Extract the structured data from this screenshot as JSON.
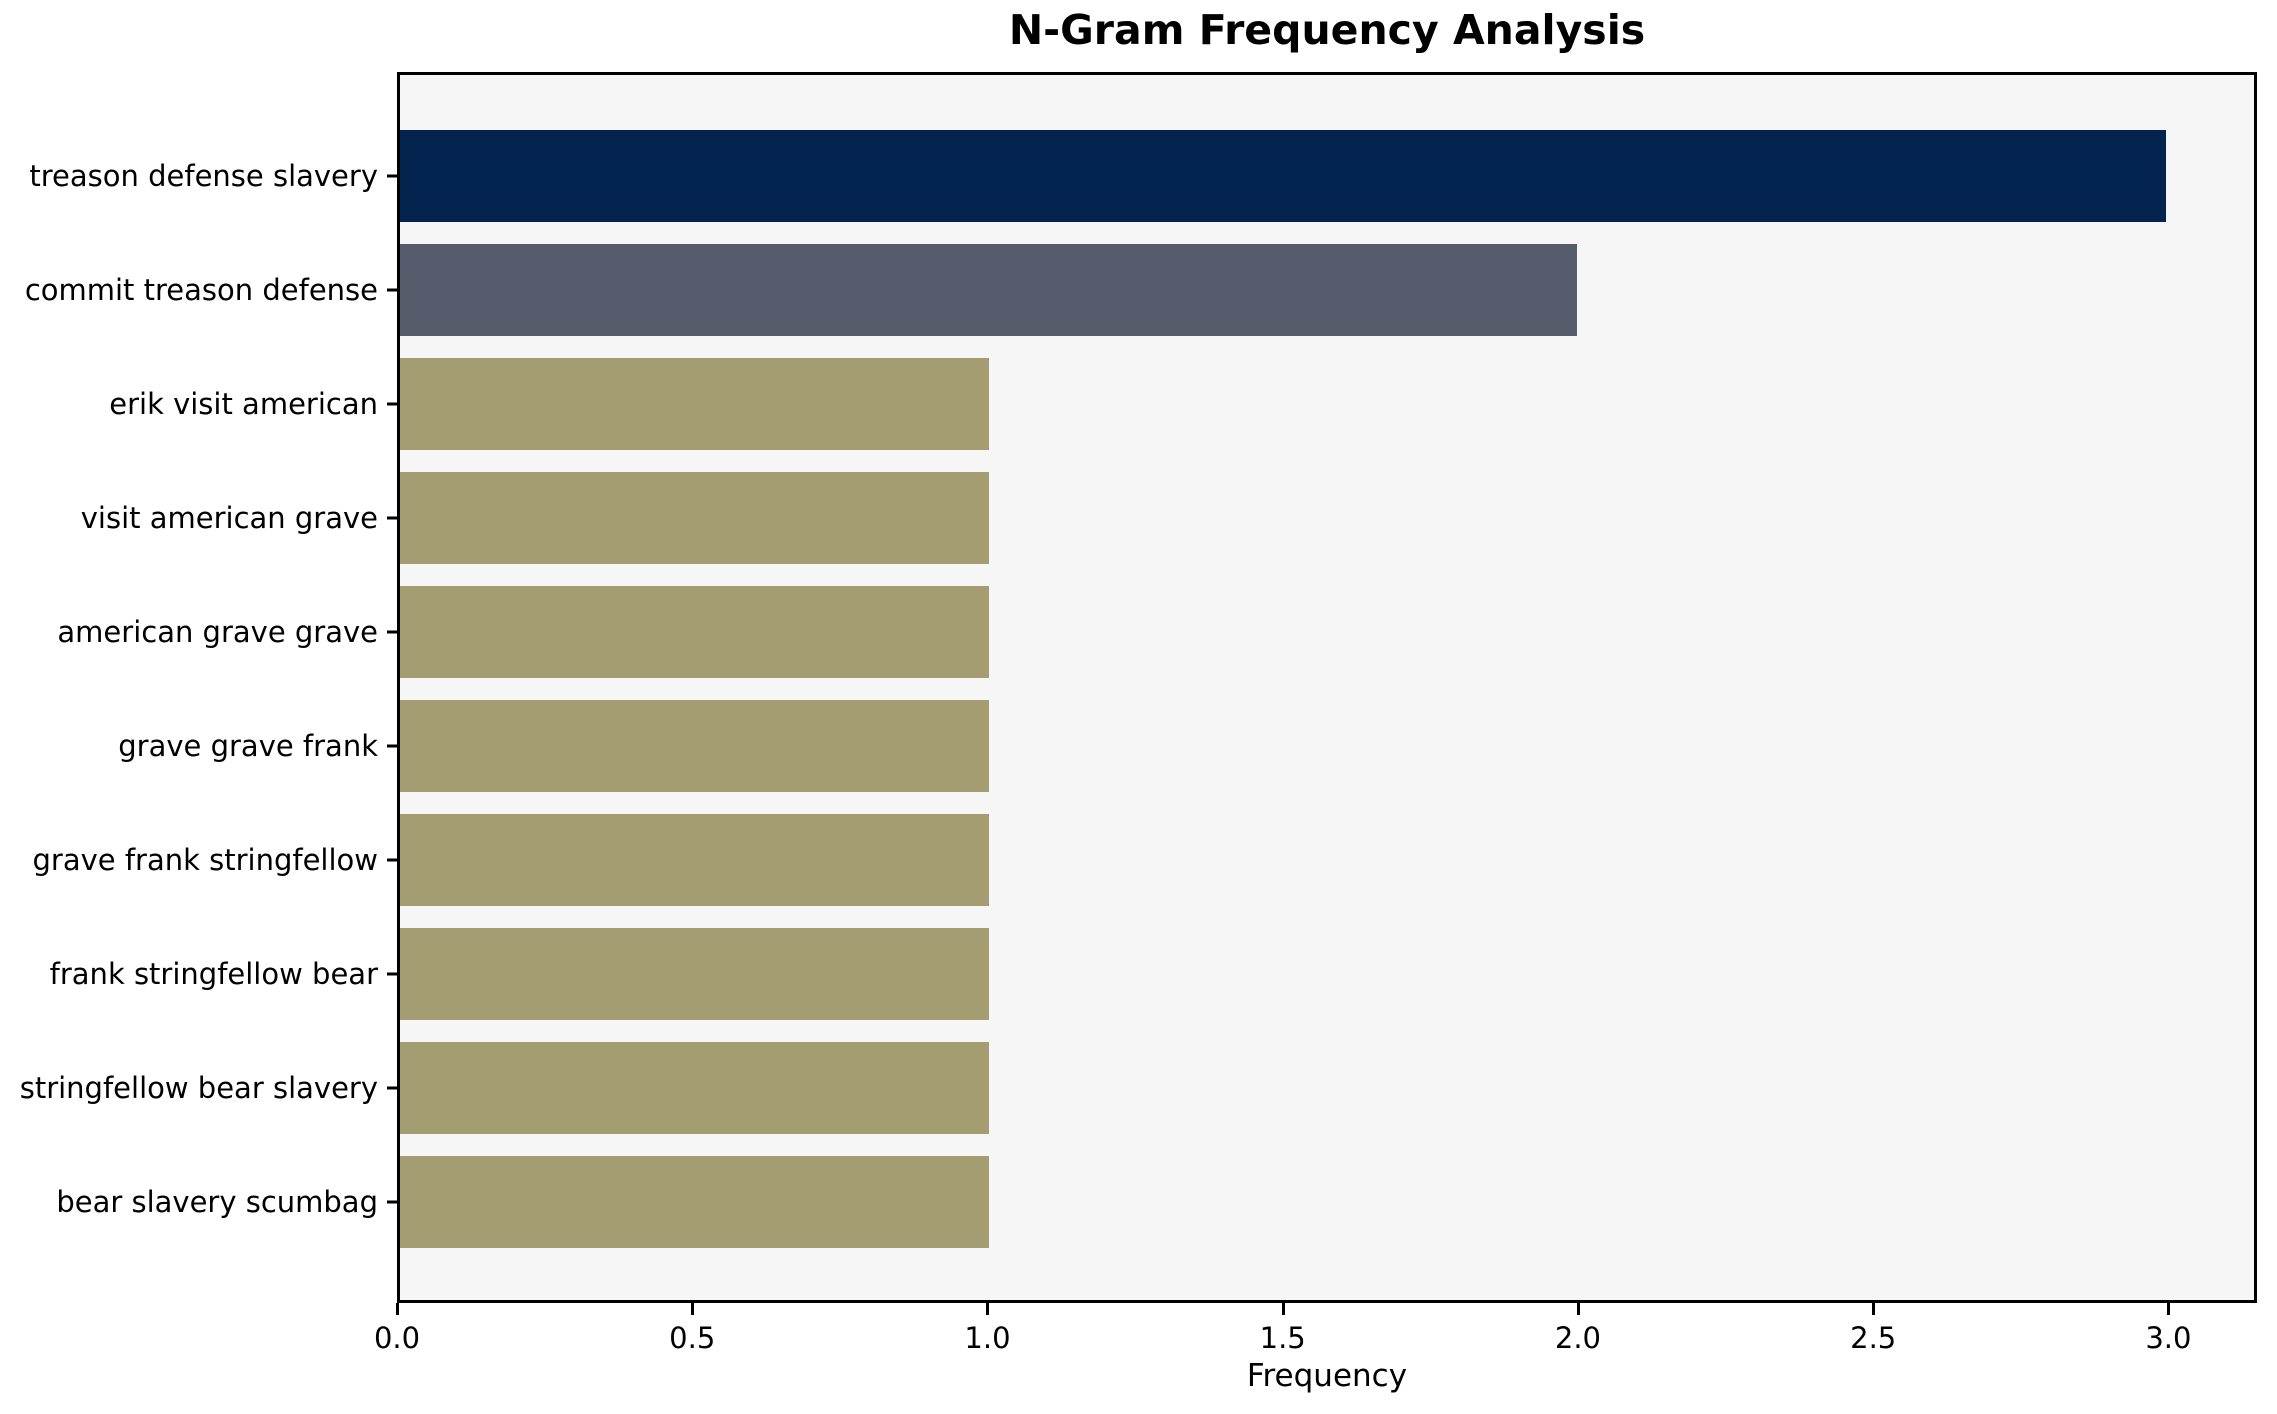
{
  "chart_data": {
    "type": "bar",
    "orientation": "horizontal",
    "title": "N-Gram Frequency Analysis",
    "xlabel": "Frequency",
    "ylabel": "",
    "categories": [
      "treason defense slavery",
      "commit treason defense",
      "erik visit american",
      "visit american grave",
      "american grave grave",
      "grave grave frank",
      "grave frank stringfellow",
      "frank stringfellow bear",
      "stringfellow bear slavery",
      "bear slavery scumbag"
    ],
    "values": [
      3,
      2,
      1,
      1,
      1,
      1,
      1,
      1,
      1,
      1
    ],
    "bar_colors": [
      "#01234e",
      "#565c6b",
      "#a39d71",
      "#a39d71",
      "#a39d71",
      "#a39d71",
      "#a39d71",
      "#a39d71",
      "#a39d71",
      "#a39d71"
    ],
    "xlim": [
      0,
      3.15
    ],
    "x_ticks": [
      "0.0",
      "0.5",
      "1.0",
      "1.5",
      "2.0",
      "2.5",
      "3.0"
    ],
    "grid": false,
    "legend": false,
    "plot_background": "#f6f6f7",
    "figure_background": "#ffffff",
    "spine_color": "#000000"
  }
}
